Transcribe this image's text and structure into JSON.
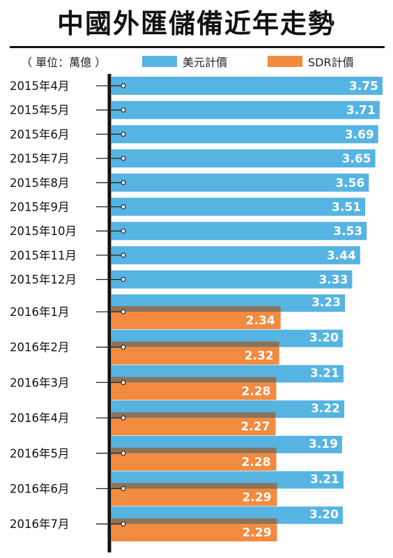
{
  "title": "中國外匯儲備近年走勢",
  "legend": {
    "unit": "（ 單位：萬億 ）",
    "usd": "美元計價",
    "sdr": "SDR計價"
  },
  "colors": {
    "usd": "#56b4e3",
    "sdr": "#f28a3f",
    "sdr_shadow": "#8b7359",
    "axis": "#111111"
  },
  "chart_data": {
    "type": "bar",
    "orientation": "horizontal",
    "title": "中國外匯儲備近年走勢",
    "unit": "（ 單位：萬億 ）",
    "categories": [
      "2015年4月",
      "2015年5月",
      "2015年6月",
      "2015年7月",
      "2015年8月",
      "2015年9月",
      "2015年10月",
      "2015年11月",
      "2015年12月",
      "2016年1月",
      "2016年2月",
      "2016年3月",
      "2016年4月",
      "2016年5月",
      "2016年6月",
      "2016年7月"
    ],
    "series": [
      {
        "name": "美元計價",
        "values": [
          3.75,
          3.71,
          3.69,
          3.65,
          3.56,
          3.51,
          3.53,
          3.44,
          3.33,
          3.23,
          3.2,
          3.21,
          3.22,
          3.19,
          3.21,
          3.2
        ]
      },
      {
        "name": "SDR計價",
        "values": [
          null,
          null,
          null,
          null,
          null,
          null,
          null,
          null,
          null,
          2.34,
          2.32,
          2.28,
          2.27,
          2.28,
          2.29,
          2.29
        ]
      }
    ],
    "value_labels": {
      "usd": [
        "3.75",
        "3.71",
        "3.69",
        "3.65",
        "3.56",
        "3.51",
        "3.53",
        "3.44",
        "3.33",
        "3.23",
        "3.20",
        "3.21",
        "3.22",
        "3.19",
        "3.21",
        "3.20"
      ],
      "sdr": [
        null,
        null,
        null,
        null,
        null,
        null,
        null,
        null,
        null,
        "2.34",
        "2.32",
        "2.28",
        "2.27",
        "2.28",
        "2.29",
        "2.29"
      ]
    },
    "xlim": [
      0,
      3.75
    ],
    "grid": false,
    "legend": "top"
  }
}
